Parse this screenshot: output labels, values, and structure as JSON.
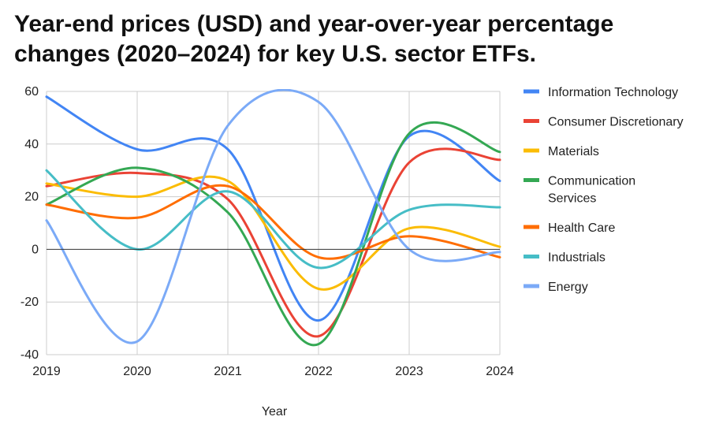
{
  "chart_data": {
    "type": "line",
    "title": "Year-end prices (USD) and year-over-year percentage changes (2020–2024) for key U.S. sector ETFs.",
    "xlabel": "Year",
    "ylabel": "",
    "x": [
      2019,
      2020,
      2021,
      2022,
      2023,
      2024
    ],
    "x_tick_labels": [
      "2019",
      "2020",
      "2021",
      "2022",
      "2023",
      "2024"
    ],
    "y_ticks": [
      60,
      40,
      20,
      0,
      -20,
      -40
    ],
    "y_tick_labels": [
      "60",
      "40",
      "20",
      "0",
      "-20",
      "-40"
    ],
    "ylim": [
      -40,
      60
    ],
    "grid": true,
    "legend_position": "right",
    "series": [
      {
        "name": "Information Technology",
        "color": "#4285F4",
        "values": [
          58,
          38,
          38,
          -27,
          43,
          26
        ]
      },
      {
        "name": "Consumer Discretionary",
        "color": "#EA4335",
        "values": [
          24,
          29,
          19,
          -33,
          33,
          34
        ]
      },
      {
        "name": "Materials",
        "color": "#FBBC04",
        "values": [
          25,
          20,
          26,
          -15,
          8,
          1
        ]
      },
      {
        "name": "Communication Services",
        "color": "#34A853",
        "values": [
          17,
          31,
          14,
          -36,
          44,
          37
        ]
      },
      {
        "name": "Health Care",
        "color": "#FF6D01",
        "values": [
          17,
          12,
          24,
          -3,
          5,
          -3
        ]
      },
      {
        "name": "Industrials",
        "color": "#46BDC6",
        "values": [
          30,
          0,
          22,
          -7,
          15,
          16
        ]
      },
      {
        "name": "Energy",
        "color": "#7BAAF7",
        "values": [
          11,
          -35,
          47,
          56,
          0,
          -1
        ]
      }
    ]
  }
}
